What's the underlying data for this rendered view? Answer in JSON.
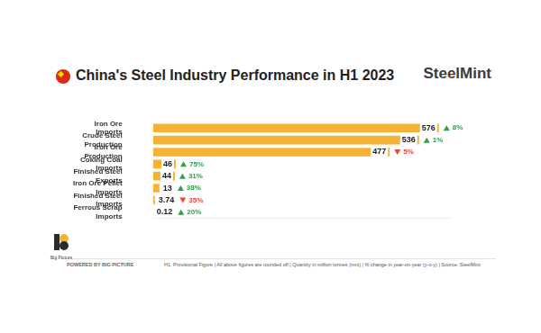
{
  "chart_data": {
    "type": "bar",
    "orientation": "horizontal",
    "title": "China's Steel Industry Performance in H1 2023",
    "brand": "SteelMint",
    "categories": [
      "Iron Ore Imports",
      "Crude Steel Production",
      "Iron Ore Production",
      "Coking Coal Imports",
      "Finished Steel Exports",
      "Iron Ore Pellet Imports",
      "Finished Steel Imports",
      "Ferrous Scrap Imports"
    ],
    "values": [
      576,
      536,
      477,
      46,
      44,
      13,
      3.74,
      0.12
    ],
    "changes": [
      8,
      1,
      -5,
      75,
      31,
      38,
      -35,
      20
    ],
    "change_labels": [
      "8%",
      "1%",
      "5%",
      "75%",
      "31%",
      "38%",
      "35%",
      "20%"
    ],
    "color": "#f4b336",
    "data_labels": true,
    "xlim": [
      0,
      600
    ],
    "tick_labels": "y",
    "grid": false,
    "footnote": "H1: Provisional Figure | All above figures are rounded off | Quantity in million tonnes (mnt) | % change in year-on-year (y-o-y) | Source: SteelMint",
    "credit": "POWERED BY BIG PICTURE",
    "logo_text": "Big Picture"
  }
}
